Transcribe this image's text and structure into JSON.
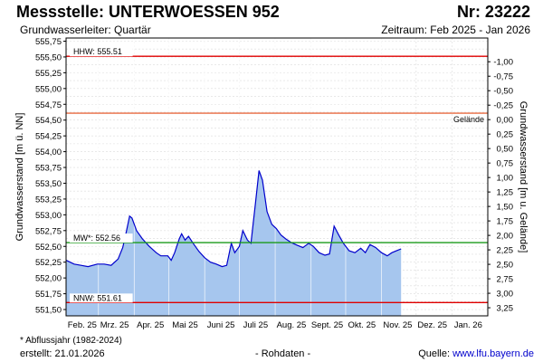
{
  "header": {
    "title": "Messstelle: UNTERWOESSEN 952",
    "nr": "Nr: 23222",
    "aquifer": "Grundwasserleiter: Quartär",
    "period": "Zeitraum: Feb 2025 - Jan 2026"
  },
  "footer": {
    "footnote": "* Abflussjahr (1982-2024)",
    "created": "erstellt:  21.01.2026",
    "rawdata": "- Rohdaten -",
    "source_prefix": "Quelle: ",
    "source_link": "www.lfu.bayern.de"
  },
  "chart_data": {
    "type": "area",
    "ylabel_left": "Grundwasserstand [m ü. NN]",
    "ylabel_right": "Grundwasserstand [m u. Gelände]",
    "ylim": [
      551.4,
      555.8
    ],
    "ylim_right": [
      -1.41,
      3.39
    ],
    "yticks_left": [
      "555,75",
      "555,50",
      "555,25",
      "555,00",
      "554,75",
      "554,50",
      "554,25",
      "554,00",
      "553,75",
      "553,50",
      "553,25",
      "553,00",
      "552,75",
      "552,50",
      "552,25",
      "552,00",
      "551,75",
      "551,50"
    ],
    "yticks_right": [
      "-1,00",
      "-0,75",
      "-0,50",
      "-0,25",
      "0,00",
      "0,25",
      "0,50",
      "0,75",
      "1,00",
      "1,25",
      "1,50",
      "1,75",
      "2,00",
      "2,25",
      "2,50",
      "2,75",
      "3,00",
      "3,25"
    ],
    "x_month_labels": [
      "Feb. 25",
      "Mrz. 25",
      "Apr. 25",
      "Mai 25",
      "Juni 25",
      "Juli 25",
      "Aug. 25",
      "Sept. 25",
      "Okt. 25",
      "Nov. 25",
      "Dez. 25",
      "Jan. 26"
    ],
    "grid": true,
    "reference_lines": [
      {
        "label": "HHW: 555.51",
        "value": 555.51,
        "color": "#e00000"
      },
      {
        "label": "Gelände",
        "value": 554.61,
        "color": "#e86a40"
      },
      {
        "label": "MW*: 552.56",
        "value": 552.56,
        "color": "#1a9a1a"
      },
      {
        "label": "NNW: 551.61",
        "value": 551.61,
        "color": "#e00000"
      }
    ],
    "series": [
      {
        "color": "#0000cc",
        "fill": "#a6c6ee",
        "points": [
          [
            "2025-02-01",
            552.28
          ],
          [
            "2025-02-08",
            552.22
          ],
          [
            "2025-02-14",
            552.2
          ],
          [
            "2025-02-20",
            552.18
          ],
          [
            "2025-02-28",
            552.22
          ],
          [
            "2025-03-06",
            552.22
          ],
          [
            "2025-03-12",
            552.2
          ],
          [
            "2025-03-18",
            552.3
          ],
          [
            "2025-03-22",
            552.48
          ],
          [
            "2025-03-25",
            552.72
          ],
          [
            "2025-03-28",
            552.98
          ],
          [
            "2025-03-30",
            552.95
          ],
          [
            "2025-04-03",
            552.75
          ],
          [
            "2025-04-08",
            552.62
          ],
          [
            "2025-04-14",
            552.5
          ],
          [
            "2025-04-20",
            552.4
          ],
          [
            "2025-04-24",
            552.35
          ],
          [
            "2025-04-30",
            552.35
          ],
          [
            "2025-05-03",
            552.28
          ],
          [
            "2025-05-06",
            552.4
          ],
          [
            "2025-05-10",
            552.62
          ],
          [
            "2025-05-12",
            552.7
          ],
          [
            "2025-05-15",
            552.6
          ],
          [
            "2025-05-18",
            552.66
          ],
          [
            "2025-05-22",
            552.55
          ],
          [
            "2025-05-27",
            552.42
          ],
          [
            "2025-06-01",
            552.32
          ],
          [
            "2025-06-06",
            552.25
          ],
          [
            "2025-06-11",
            552.22
          ],
          [
            "2025-06-16",
            552.18
          ],
          [
            "2025-06-20",
            552.2
          ],
          [
            "2025-06-24",
            552.55
          ],
          [
            "2025-06-27",
            552.4
          ],
          [
            "2025-07-01",
            552.5
          ],
          [
            "2025-07-04",
            552.75
          ],
          [
            "2025-07-08",
            552.6
          ],
          [
            "2025-07-11",
            552.55
          ],
          [
            "2025-07-15",
            553.2
          ],
          [
            "2025-07-18",
            553.7
          ],
          [
            "2025-07-21",
            553.55
          ],
          [
            "2025-07-25",
            553.05
          ],
          [
            "2025-07-29",
            552.85
          ],
          [
            "2025-08-02",
            552.78
          ],
          [
            "2025-08-06",
            552.68
          ],
          [
            "2025-08-10",
            552.62
          ],
          [
            "2025-08-15",
            552.56
          ],
          [
            "2025-08-20",
            552.52
          ],
          [
            "2025-08-25",
            552.48
          ],
          [
            "2025-08-30",
            552.55
          ],
          [
            "2025-09-03",
            552.5
          ],
          [
            "2025-09-08",
            552.4
          ],
          [
            "2025-09-13",
            552.36
          ],
          [
            "2025-09-17",
            552.38
          ],
          [
            "2025-09-21",
            552.82
          ],
          [
            "2025-09-25",
            552.68
          ],
          [
            "2025-09-29",
            552.55
          ],
          [
            "2025-10-04",
            552.43
          ],
          [
            "2025-10-09",
            552.4
          ],
          [
            "2025-10-14",
            552.47
          ],
          [
            "2025-10-18",
            552.4
          ],
          [
            "2025-10-22",
            552.53
          ],
          [
            "2025-10-27",
            552.48
          ],
          [
            "2025-11-01",
            552.4
          ],
          [
            "2025-11-06",
            552.35
          ],
          [
            "2025-11-10",
            552.4
          ],
          [
            "2025-11-14",
            552.43
          ],
          [
            "2025-11-18",
            552.46
          ]
        ]
      }
    ]
  }
}
